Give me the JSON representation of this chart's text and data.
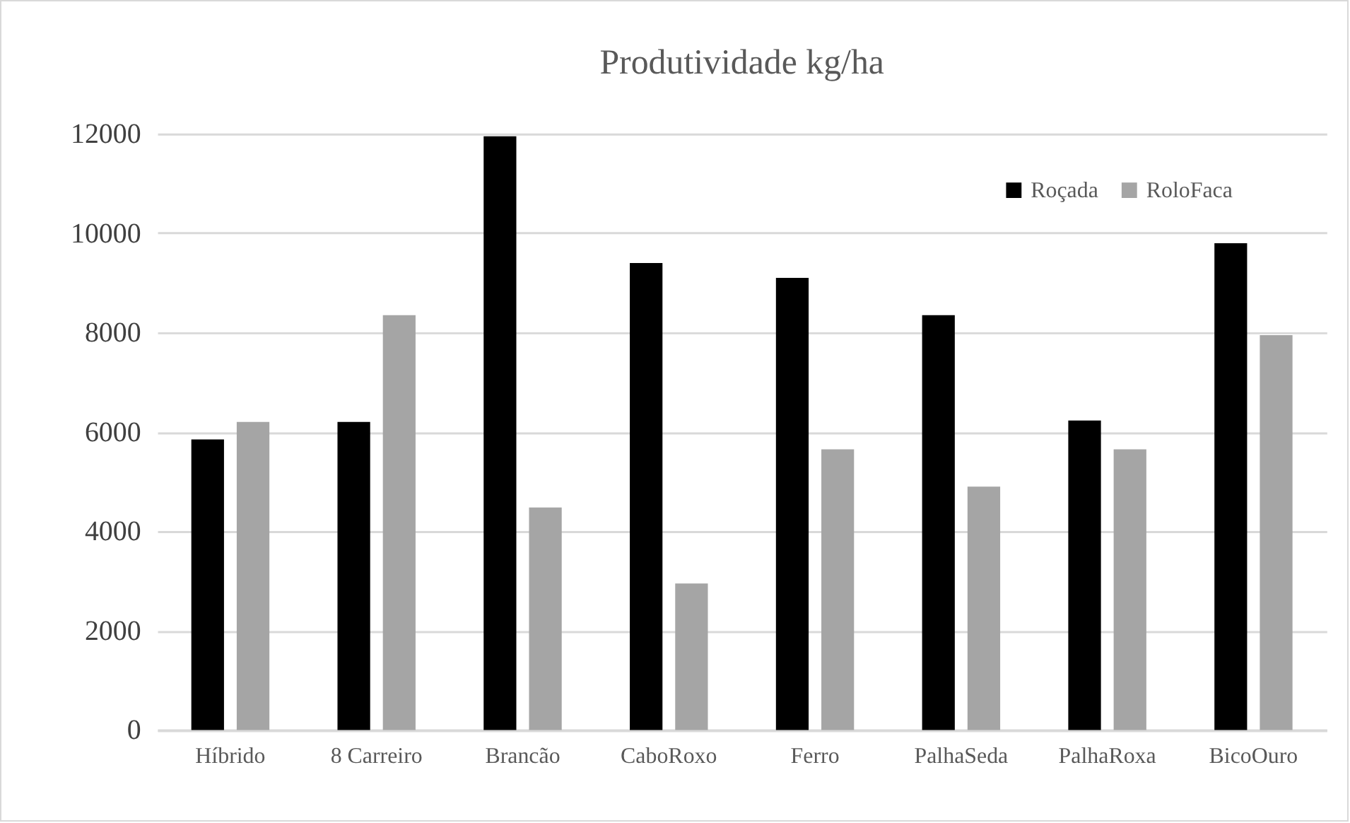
{
  "chart_data": {
    "type": "bar",
    "title": "Produtividade kg/ha",
    "categories": [
      "Híbrido",
      "8 Carreiro",
      "Brancão",
      "CaboRoxo",
      "Ferro",
      "PalhaSeda",
      "PalhaRoxa",
      "BicoOuro"
    ],
    "series": [
      {
        "name": "Roçada",
        "color": "#000000",
        "values": [
          5850,
          6200,
          11950,
          9400,
          9100,
          8350,
          6230,
          9800
        ]
      },
      {
        "name": "RoloFaca",
        "color": "#a5a5a5",
        "values": [
          6200,
          8350,
          4480,
          2950,
          5650,
          4900,
          5650,
          7950
        ]
      }
    ],
    "ylim": [
      0,
      12000
    ],
    "yticks": [
      0,
      2000,
      4000,
      6000,
      8000,
      10000,
      12000
    ],
    "grid": "y",
    "legend": "top right"
  }
}
